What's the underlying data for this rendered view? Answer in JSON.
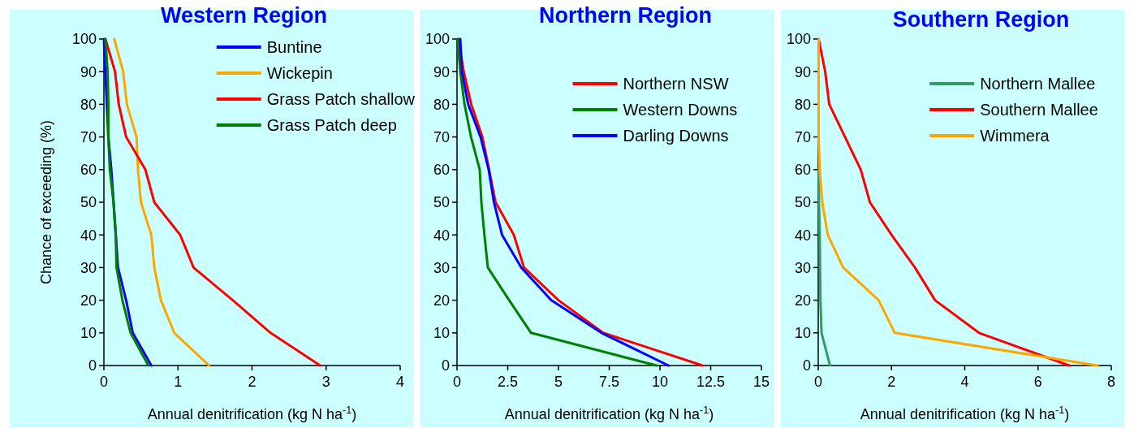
{
  "chart_data": [
    {
      "type": "line",
      "title": "Western Region",
      "xlabel": "Annual denitrification (kg N ha$^{-1}$)",
      "ylabel": "Chance of exceeding  (%)",
      "xlim": [
        0,
        4
      ],
      "xticks": [
        0,
        1,
        2,
        3,
        4
      ],
      "ylim": [
        0,
        100
      ],
      "yticks": [
        0,
        10,
        20,
        30,
        40,
        50,
        60,
        70,
        80,
        90,
        100
      ],
      "grid": false,
      "legend": "top right",
      "marker": "none",
      "series": [
        {
          "name": "Buntine",
          "color": "#0000ff",
          "x": [
            0,
            0.02,
            0.04,
            0.06,
            0.1,
            0.13,
            0.16,
            0.19,
            0.3,
            0.39,
            0.64
          ],
          "values": [
            100,
            90,
            80,
            70,
            60,
            50,
            40,
            30,
            20,
            10,
            0
          ]
        },
        {
          "name": "Wickepin",
          "color": "#ffa500",
          "x": [
            0.14,
            0.26,
            0.31,
            0.44,
            0.46,
            0.5,
            0.64,
            0.68,
            0.77,
            0.95,
            1.42
          ],
          "values": [
            100,
            90,
            80,
            70,
            60,
            50,
            40,
            30,
            20,
            10,
            0
          ]
        },
        {
          "name": "Grass Patch shallow",
          "color": "#ff0000",
          "x": [
            0.02,
            0.15,
            0.2,
            0.3,
            0.56,
            0.68,
            1.03,
            1.21,
            1.74,
            2.25,
            2.92
          ],
          "values": [
            100,
            90,
            80,
            70,
            60,
            50,
            40,
            30,
            20,
            10,
            0
          ]
        },
        {
          "name": "Grass Patch deep",
          "color": "#008000",
          "x": [
            0.02,
            0.05,
            0.06,
            0.06,
            0.08,
            0.13,
            0.16,
            0.17,
            0.25,
            0.36,
            0.6
          ],
          "values": [
            100,
            90,
            80,
            70,
            60,
            50,
            40,
            30,
            20,
            10,
            0
          ]
        }
      ]
    },
    {
      "type": "line",
      "title": "Northern Region",
      "xlabel": "Annual denitrification (kg N ha$^{-1}$)",
      "xlim": [
        0,
        15
      ],
      "xticks": [
        0,
        2.5,
        5,
        7.5,
        10,
        12.5,
        15
      ],
      "ylim": [
        0,
        100
      ],
      "yticks": [
        0,
        10,
        20,
        30,
        40,
        50,
        60,
        70,
        80,
        90,
        100
      ],
      "grid": false,
      "legend": "top right",
      "marker": "none",
      "series": [
        {
          "name": "Northern NSW",
          "color": "#ff0000",
          "x": [
            0.07,
            0.33,
            0.7,
            1.25,
            1.58,
            1.9,
            2.8,
            3.3,
            5,
            7.2,
            12.1
          ],
          "values": [
            100,
            90,
            80,
            70,
            60,
            50,
            40,
            30,
            20,
            10,
            0
          ]
        },
        {
          "name": "Western Downs",
          "color": "#008000",
          "x": [
            0.03,
            0.16,
            0.37,
            0.69,
            1.12,
            1.2,
            1.35,
            1.52,
            2.57,
            3.65,
            9.83
          ],
          "values": [
            100,
            90,
            80,
            70,
            60,
            50,
            40,
            30,
            20,
            10,
            0
          ]
        },
        {
          "name": "Darling Downs",
          "color": "#0000ff",
          "x": [
            0.16,
            0.24,
            0.55,
            1.16,
            1.56,
            1.82,
            2.22,
            3.17,
            4.64,
            7.12,
            10.42
          ],
          "values": [
            100,
            90,
            80,
            70,
            60,
            50,
            40,
            30,
            20,
            10,
            0
          ]
        }
      ]
    },
    {
      "type": "line",
      "title": "Southern Region",
      "xlabel": "Annual denitrification (kg N ha$^{-1}$)",
      "xlim": [
        0,
        8
      ],
      "xticks": [
        0,
        2,
        4,
        6,
        8
      ],
      "ylim": [
        0,
        100
      ],
      "yticks": [
        0,
        10,
        20,
        30,
        40,
        50,
        60,
        70,
        80,
        90,
        100
      ],
      "grid": false,
      "legend": "top right",
      "marker": "none",
      "series": [
        {
          "name": "Northern Mallee",
          "color": "#339966",
          "x": [
            null,
            null,
            null,
            null,
            0.01,
            0.02,
            0.04,
            0.05,
            0.06,
            0.09,
            0.32
          ],
          "values": [
            null,
            null,
            null,
            null,
            60,
            50,
            40,
            30,
            20,
            10,
            0
          ]
        },
        {
          "name": "Southern Mallee",
          "color": "#ff0000",
          "x": [
            0.01,
            0.19,
            0.3,
            0.73,
            1.16,
            1.41,
            2,
            2.64,
            3.19,
            4.39,
            6.85
          ],
          "values": [
            100,
            90,
            80,
            70,
            60,
            50,
            40,
            30,
            20,
            10,
            0
          ]
        },
        {
          "name": "Wimmera",
          "color": "#ffa500",
          "x": [
            0.01,
            0.01,
            0.01,
            0.01,
            0.04,
            0.11,
            0.26,
            0.68,
            1.65,
            2.09,
            7.62
          ],
          "values": [
            100,
            90,
            80,
            70,
            60,
            50,
            40,
            30,
            20,
            10,
            0
          ]
        }
      ]
    }
  ]
}
